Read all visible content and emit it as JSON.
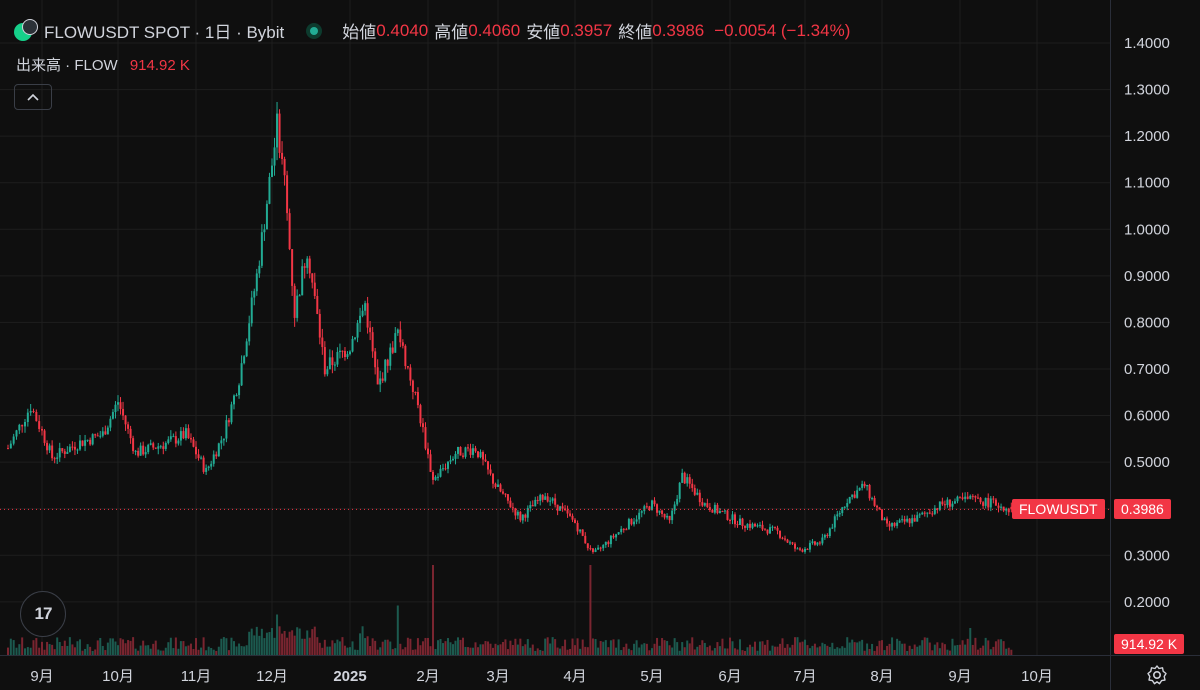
{
  "legend": {
    "symbol": "FLOWUSDT SPOT · 1日 · Bybit",
    "open_label": "始値",
    "open": "0.4040",
    "high_label": "高値",
    "high": "0.4060",
    "low_label": "安値",
    "low": "0.3957",
    "close_label": "終値",
    "close": "0.3986",
    "change": "−0.0054 (−1.34%)"
  },
  "volume_legend": {
    "label": "出来高 · FLOW",
    "value": "914.92 K"
  },
  "collapse_icon": "chevron-up-icon",
  "logo_text": "17",
  "price_tag": {
    "symbol": "FLOWUSDT",
    "price": "0.3986"
  },
  "volume_tag": "914.92 K",
  "colors": {
    "up": "#22ab94",
    "down": "#f23645",
    "bg": "#0f0f0f",
    "grid": "#1e1e1e",
    "text": "#d1d4dc"
  },
  "chart_data": {
    "type": "candlestick",
    "title": "FLOWUSDT SPOT · 1日 · Bybit",
    "y_ticks": [
      "1.4000",
      "1.3000",
      "1.2000",
      "1.1000",
      "1.0000",
      "0.9000",
      "0.8000",
      "0.7000",
      "0.6000",
      "0.5000",
      "0.4000",
      "0.3000",
      "0.2000"
    ],
    "ylim": [
      0.13,
      1.44
    ],
    "x_ticks": [
      "9月",
      "10月",
      "11月",
      "12月",
      "2025",
      "2月",
      "3月",
      "4月",
      "5月",
      "6月",
      "7月",
      "8月",
      "9月",
      "10月"
    ],
    "x_tick_dates": [
      "2024-09-01",
      "2024-10-01",
      "2024-11-01",
      "2024-12-01",
      "2025-01-01",
      "2025-02-01",
      "2025-03-01",
      "2025-04-01",
      "2025-05-01",
      "2025-06-01",
      "2025-07-01",
      "2025-08-01",
      "2025-09-01",
      "2025-10-01"
    ],
    "date_range": [
      "2024-08-20",
      "2025-09-21"
    ],
    "last_price": 0.3986,
    "approx_close_path": [
      [
        "2024-08-20",
        0.53
      ],
      [
        "2024-08-28",
        0.62
      ],
      [
        "2024-09-05",
        0.51
      ],
      [
        "2024-09-15",
        0.54
      ],
      [
        "2024-09-25",
        0.56
      ],
      [
        "2024-10-01",
        0.63
      ],
      [
        "2024-10-08",
        0.52
      ],
      [
        "2024-10-20",
        0.54
      ],
      [
        "2024-10-28",
        0.56
      ],
      [
        "2024-11-05",
        0.48
      ],
      [
        "2024-11-12",
        0.56
      ],
      [
        "2024-11-18",
        0.68
      ],
      [
        "2024-11-25",
        0.9
      ],
      [
        "2024-12-03",
        1.22
      ],
      [
        "2024-12-06",
        1.1
      ],
      [
        "2024-12-10",
        0.82
      ],
      [
        "2024-12-15",
        0.96
      ],
      [
        "2024-12-22",
        0.7
      ],
      [
        "2025-01-01",
        0.75
      ],
      [
        "2025-01-07",
        0.84
      ],
      [
        "2025-01-12",
        0.66
      ],
      [
        "2025-01-20",
        0.78
      ],
      [
        "2025-01-28",
        0.62
      ],
      [
        "2025-02-03",
        0.46
      ],
      [
        "2025-02-12",
        0.52
      ],
      [
        "2025-02-20",
        0.53
      ],
      [
        "2025-02-28",
        0.45
      ],
      [
        "2025-03-10",
        0.38
      ],
      [
        "2025-03-20",
        0.43
      ],
      [
        "2025-04-01",
        0.37
      ],
      [
        "2025-04-08",
        0.3
      ],
      [
        "2025-04-20",
        0.36
      ],
      [
        "2025-05-01",
        0.41
      ],
      [
        "2025-05-08",
        0.37
      ],
      [
        "2025-05-13",
        0.47
      ],
      [
        "2025-05-22",
        0.41
      ],
      [
        "2025-06-05",
        0.37
      ],
      [
        "2025-06-20",
        0.35
      ],
      [
        "2025-06-28",
        0.31
      ],
      [
        "2025-07-08",
        0.33
      ],
      [
        "2025-07-18",
        0.42
      ],
      [
        "2025-07-25",
        0.45
      ],
      [
        "2025-08-03",
        0.36
      ],
      [
        "2025-08-15",
        0.38
      ],
      [
        "2025-08-25",
        0.41
      ],
      [
        "2025-09-05",
        0.42
      ],
      [
        "2025-09-15",
        0.41
      ],
      [
        "2025-09-21",
        0.3986
      ]
    ],
    "volume_spikes": [
      [
        "2025-02-03",
        1.0
      ],
      [
        "2025-04-07",
        1.0
      ],
      [
        "2025-01-20",
        0.55
      ],
      [
        "2024-12-03",
        0.45
      ],
      [
        "2025-09-05",
        0.3
      ]
    ]
  }
}
